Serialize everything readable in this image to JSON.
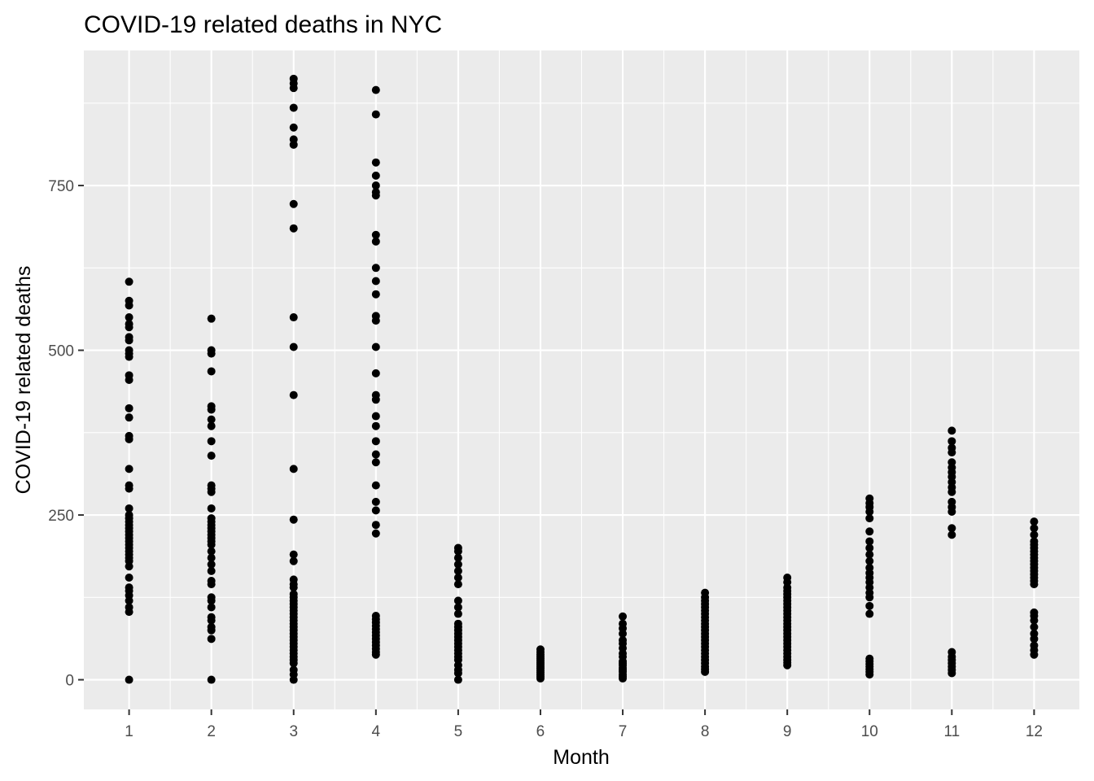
{
  "chart_data": {
    "type": "scatter",
    "title": "COVID-19 related deaths in NYC",
    "xlabel": "Month",
    "ylabel": "COVID-19 related deaths",
    "x_ticks": [
      1,
      2,
      3,
      4,
      5,
      6,
      7,
      8,
      9,
      10,
      11,
      12
    ],
    "y_ticks": [
      0,
      250,
      500,
      750
    ],
    "xlim": [
      0.45,
      12.55
    ],
    "ylim": [
      -45,
      955
    ],
    "grid": true,
    "point_color": "#000000",
    "panel_color": "#ebebeb",
    "series": [
      {
        "points": [
          {
            "x": 1,
            "y": [
              0,
              103,
              110,
              120,
              128,
              135,
              140,
              155,
              172,
              180,
              185,
              190,
              195,
              200,
              205,
              210,
              215,
              220,
              225,
              230,
              235,
              240,
              245,
              250,
              260,
              290,
              295,
              320,
              365,
              370,
              398,
              412,
              455,
              462,
              490,
              495,
              500,
              515,
              520,
              535,
              540,
              550,
              568,
              575,
              604
            ]
          },
          {
            "x": 2,
            "y": [
              0,
              62,
              75,
              80,
              90,
              95,
              110,
              120,
              125,
              145,
              150,
              165,
              175,
              185,
              195,
              205,
              210,
              215,
              220,
              225,
              230,
              235,
              240,
              245,
              260,
              285,
              290,
              295,
              340,
              362,
              385,
              395,
              410,
              415,
              468,
              495,
              500,
              548
            ]
          },
          {
            "x": 3,
            "y": [
              0,
              8,
              15,
              25,
              30,
              35,
              40,
              45,
              50,
              55,
              60,
              65,
              70,
              75,
              80,
              85,
              90,
              95,
              100,
              105,
              110,
              115,
              120,
              125,
              130,
              140,
              145,
              152,
              180,
              190,
              243,
              320,
              432,
              505,
              550,
              685,
              722,
              812,
              820,
              838,
              868,
              898,
              905,
              912
            ]
          },
          {
            "x": 4,
            "y": [
              38,
              42,
              47,
              52,
              57,
              62,
              67,
              72,
              77,
              82,
              87,
              92,
              97,
              222,
              235,
              257,
              270,
              295,
              330,
              342,
              362,
              385,
              400,
              425,
              432,
              465,
              505,
              545,
              552,
              585,
              605,
              625,
              665,
              675,
              735,
              740,
              750,
              765,
              785,
              858,
              895
            ]
          },
          {
            "x": 5,
            "y": [
              0,
              10,
              15,
              22,
              30,
              35,
              40,
              45,
              50,
              55,
              60,
              65,
              70,
              75,
              80,
              85,
              100,
              110,
              120,
              145,
              155,
              165,
              175,
              185,
              195,
              200
            ]
          },
          {
            "x": 6,
            "y": [
              2,
              5,
              8,
              11,
              14,
              17,
              20,
              23,
              26,
              29,
              32,
              35,
              38,
              42,
              46
            ]
          },
          {
            "x": 7,
            "y": [
              2,
              5,
              8,
              12,
              15,
              18,
              22,
              25,
              28,
              35,
              40,
              48,
              55,
              60,
              70,
              78,
              85,
              96
            ]
          },
          {
            "x": 8,
            "y": [
              12,
              16,
              20,
              25,
              30,
              35,
              40,
              45,
              50,
              55,
              60,
              65,
              70,
              75,
              80,
              85,
              90,
              95,
              100,
              105,
              110,
              115,
              120,
              125,
              132
            ]
          },
          {
            "x": 9,
            "y": [
              22,
              26,
              30,
              35,
              40,
              45,
              50,
              55,
              60,
              65,
              70,
              75,
              80,
              85,
              90,
              95,
              100,
              105,
              110,
              115,
              120,
              125,
              130,
              135,
              140,
              148,
              155
            ]
          },
          {
            "x": 10,
            "y": [
              8,
              12,
              16,
              20,
              24,
              28,
              32,
              100,
              112,
              125,
              132,
              140,
              148,
              155,
              162,
              170,
              180,
              190,
              200,
              210,
              225,
              245,
              255,
              262,
              268,
              275
            ]
          },
          {
            "x": 11,
            "y": [
              10,
              15,
              20,
              25,
              30,
              35,
              42,
              220,
              230,
              255,
              262,
              270,
              285,
              292,
              300,
              308,
              315,
              322,
              330,
              345,
              352,
              362,
              378
            ]
          },
          {
            "x": 12,
            "y": [
              38,
              45,
              52,
              62,
              70,
              80,
              90,
              97,
              102,
              145,
              150,
              155,
              160,
              165,
              170,
              175,
              180,
              185,
              190,
              195,
              200,
              205,
              210,
              220,
              230,
              240
            ]
          }
        ]
      }
    ]
  }
}
